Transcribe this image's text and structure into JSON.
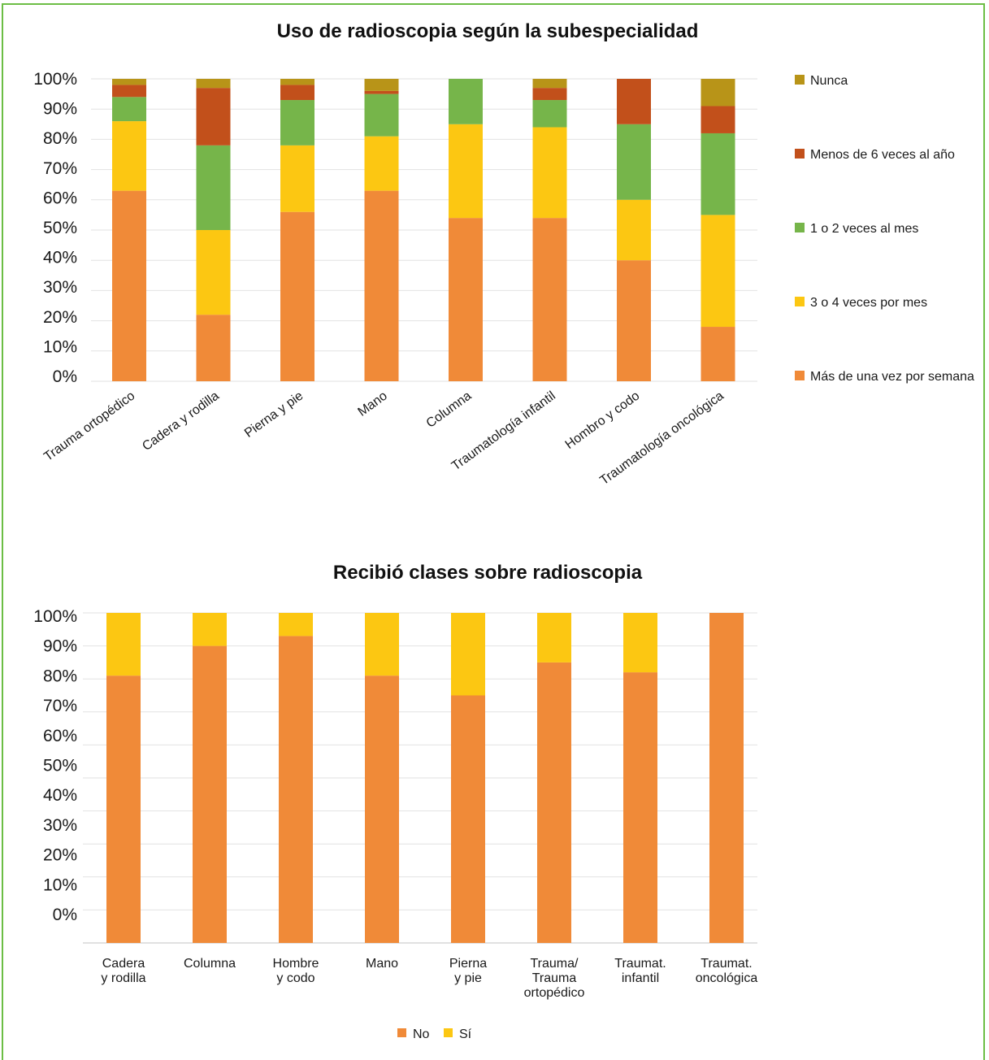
{
  "chart_data": [
    {
      "type": "bar",
      "stacked": true,
      "title": "Uso de radioscopia según la subespecialidad",
      "categories": [
        "Trauma ortopédico",
        "Cadera y rodilla",
        "Pierna y pie",
        "Mano",
        "Columna",
        "Traumatología infantil",
        "Hombro y codo",
        "Traumatología oncológica"
      ],
      "yticks": [
        "0%",
        "10%",
        "20%",
        "30%",
        "40%",
        "50%",
        "60%",
        "70%",
        "80%",
        "90%",
        "100%"
      ],
      "ylim": [
        0,
        100
      ],
      "legend_position": "right",
      "series": [
        {
          "name": "Más de una vez por semana",
          "color": "#f08a38",
          "values": [
            63,
            22,
            56,
            63,
            54,
            54,
            40,
            18
          ]
        },
        {
          "name": "3 o 4 veces por mes",
          "color": "#fcc712",
          "values": [
            23,
            28,
            22,
            18,
            31,
            30,
            20,
            37
          ]
        },
        {
          "name": "1 o 2 veces al mes",
          "color": "#76b54a",
          "values": [
            8,
            28,
            15,
            14,
            15,
            9,
            25,
            27
          ]
        },
        {
          "name": "Menos de 6 veces al año",
          "color": "#c2501b",
          "values": [
            4,
            19,
            5,
            1,
            0,
            4,
            15,
            9
          ]
        },
        {
          "name": "Nunca",
          "color": "#b89418",
          "values": [
            2,
            3,
            2,
            4,
            0,
            3,
            0,
            9
          ]
        }
      ]
    },
    {
      "type": "bar",
      "stacked": true,
      "title": "Recibió clases sobre radioscopia",
      "categories": [
        [
          "Cadera",
          "y rodilla"
        ],
        [
          "Columna"
        ],
        [
          "Hombre",
          "y codo"
        ],
        [
          "Mano"
        ],
        [
          "Pierna",
          "y pie"
        ],
        [
          "Trauma/",
          "Trauma",
          "ortopédico"
        ],
        [
          "Traumat.",
          "infantil"
        ],
        [
          "Traumat.",
          "oncológica"
        ]
      ],
      "yticks": [
        "0%",
        "10%",
        "20%",
        "30%",
        "40%",
        "50%",
        "60%",
        "70%",
        "80%",
        "90%",
        "100%"
      ],
      "ylim": [
        0,
        100
      ],
      "legend_position": "bottom",
      "series": [
        {
          "name": "No",
          "color": "#f08a38",
          "values": [
            81,
            90,
            93,
            81,
            75,
            85,
            82,
            100
          ]
        },
        {
          "name": "Sí",
          "color": "#fcc712",
          "values": [
            19,
            10,
            7,
            19,
            25,
            15,
            18,
            0
          ]
        }
      ]
    }
  ]
}
